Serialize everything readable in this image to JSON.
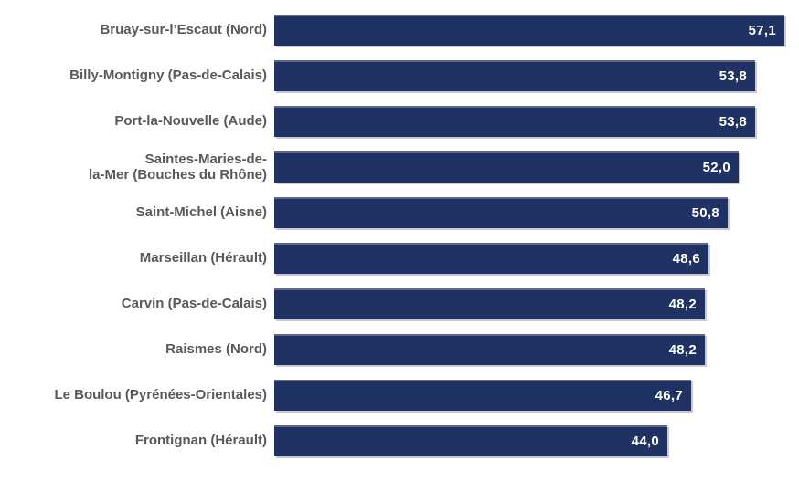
{
  "chart_data": {
    "type": "bar",
    "orientation": "horizontal",
    "title": "",
    "xlabel": "",
    "ylabel": "",
    "xlim": [
      0,
      60
    ],
    "grid": false,
    "legend": false,
    "categories": [
      "Bruay-sur-l’Escaut (Nord)",
      "Billy-Montigny (Pas-de-Calais)",
      "Port-la-Nouvelle (Aude)",
      "Saintes-Maries-de-\nla-Mer (Bouches du Rhône)",
      "Saint-Michel (Aisne)",
      "Marseillan (Hérault)",
      "Carvin (Pas-de-Calais)",
      "Raismes (Nord)",
      "Le Boulou (Pyrénées-Orientales)",
      "Frontignan (Hérault)"
    ],
    "values": [
      57.1,
      53.8,
      53.8,
      52.0,
      50.8,
      48.6,
      48.2,
      48.2,
      46.7,
      44.0
    ],
    "value_labels": [
      "57,1",
      "53,8",
      "53,8",
      "52,0",
      "50,8",
      "48,6",
      "48,2",
      "48,2",
      "46,7",
      "44,0"
    ],
    "colors": {
      "bar_fill": "#203263",
      "bar_top_highlight": "#5f6789",
      "bar_shadow": "#c9c9d5",
      "category_label": "#595959",
      "value_label": "#ffffff",
      "background": "#ffffff"
    }
  }
}
